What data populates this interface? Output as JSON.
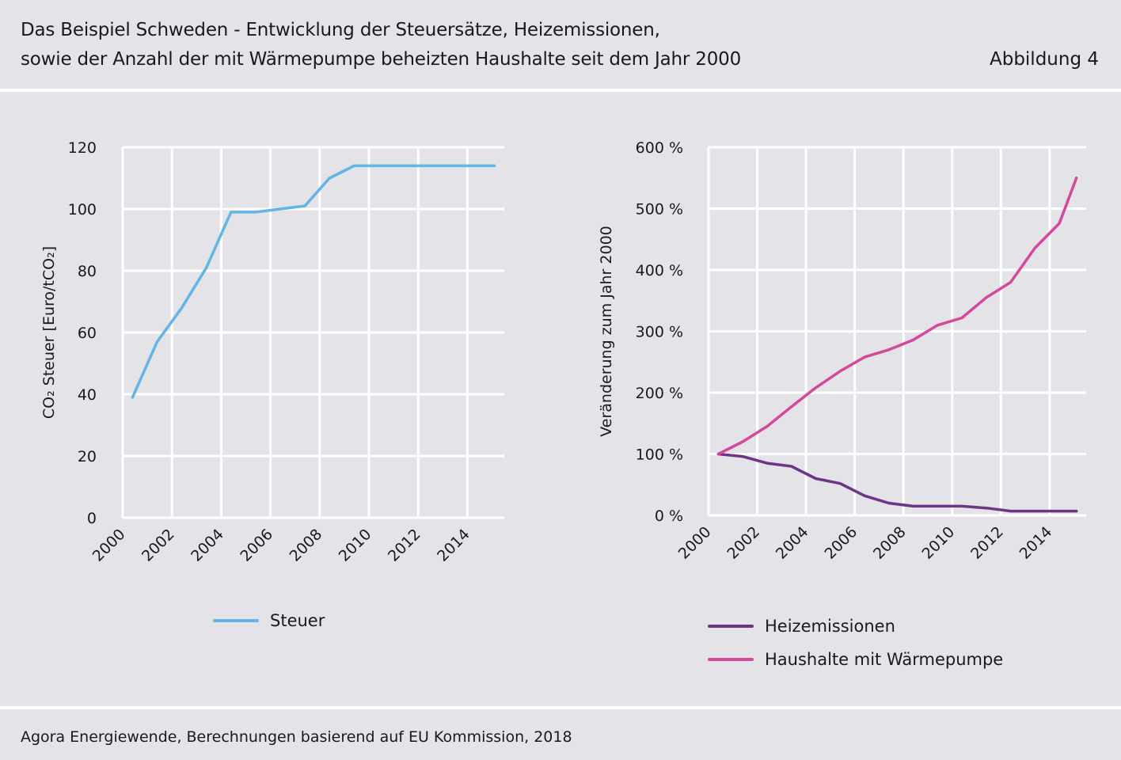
{
  "header": {
    "title_line1": "Das Beispiel Schweden - Entwicklung der Steuersätze, Heizemissionen,",
    "title_line2": "sowie der Anzahl der mit Wärmepumpe beheizten Haushalte seit dem Jahr 2000",
    "figure_label": "Abbildung 4"
  },
  "footer": {
    "source": "Agora Energiewende, Berechnungen basierend auf EU Kommission, 2018"
  },
  "colors": {
    "background": "#e3e3e8",
    "grid": "#ffffff",
    "steuer": "#62b5e5",
    "heizemissionen": "#6e3586",
    "waermepumpe": "#d6489a"
  },
  "chart_data": [
    {
      "type": "line",
      "ylabel": "CO₂ Steuer [Euro/tCO₂]",
      "xlabel": "",
      "x_ticks": [
        "2000",
        "2002",
        "2004",
        "2006",
        "2008",
        "2010",
        "2012",
        "2014"
      ],
      "y_ticks": [
        "0",
        "20",
        "40",
        "60",
        "80",
        "100",
        "120"
      ],
      "xlim": [
        2000,
        2015.5
      ],
      "ylim": [
        0,
        120
      ],
      "grid": true,
      "legend_position": "bottom",
      "series": [
        {
          "name": "Steuer",
          "color": "#62b5e5",
          "x": [
            2000.4,
            2001.4,
            2002.4,
            2003.4,
            2004.4,
            2005.4,
            2006.4,
            2007.4,
            2008.4,
            2009.4,
            2010.4,
            2011.4,
            2012.4,
            2013.4,
            2014.4,
            2015.1
          ],
          "y": [
            39,
            57,
            68,
            81,
            99,
            99,
            100,
            101,
            110,
            114,
            114,
            114,
            114,
            114,
            114,
            114
          ]
        }
      ]
    },
    {
      "type": "line",
      "ylabel": "Veränderung zum Jahr 2000",
      "xlabel": "",
      "x_ticks": [
        "2000",
        "2002",
        "2004",
        "2006",
        "2008",
        "2010",
        "2012",
        "2014"
      ],
      "y_ticks": [
        "0 %",
        "100 %",
        "200 %",
        "300 %",
        "400 %",
        "500 %",
        "600 %"
      ],
      "xlim": [
        2000,
        2015.5
      ],
      "ylim": [
        0,
        600
      ],
      "grid": true,
      "legend_position": "bottom",
      "series": [
        {
          "name": "Heizemissionen",
          "color": "#6e3586",
          "x": [
            2000.4,
            2001.4,
            2002.4,
            2003.4,
            2004.4,
            2005.4,
            2006.4,
            2007.4,
            2008.4,
            2009.4,
            2010.4,
            2011.4,
            2012.4,
            2013.4,
            2014.4,
            2015.1
          ],
          "y": [
            100,
            96,
            85,
            80,
            60,
            52,
            32,
            20,
            15,
            15,
            15,
            12,
            7,
            7,
            7,
            7
          ]
        },
        {
          "name": "Haushalte mit Wärmepumpe",
          "color": "#d6489a",
          "x": [
            2000.4,
            2001.4,
            2002.4,
            2003.4,
            2004.4,
            2005.4,
            2006.4,
            2007.4,
            2008.4,
            2009.4,
            2010.4,
            2011.4,
            2012.4,
            2013.4,
            2014.4,
            2015.1
          ],
          "y": [
            100,
            120,
            145,
            177,
            208,
            235,
            258,
            270,
            286,
            310,
            322,
            355,
            380,
            436,
            476,
            550
          ]
        }
      ]
    }
  ]
}
